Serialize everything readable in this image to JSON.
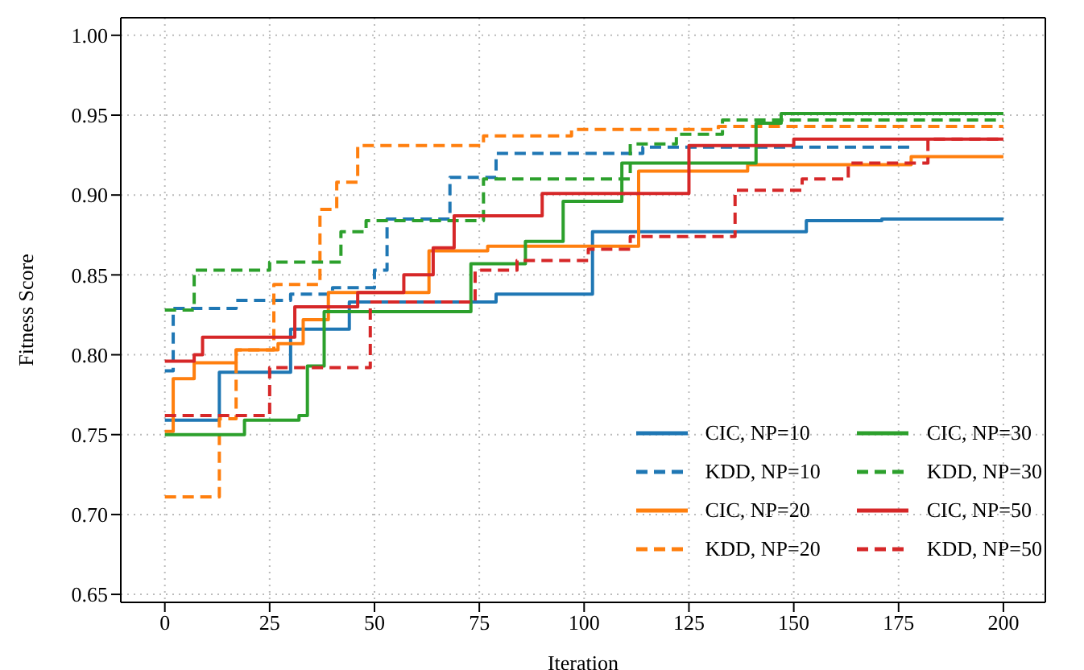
{
  "chart_data": {
    "type": "step",
    "xlabel": "Iteration",
    "ylabel": "Fitness Score",
    "xlim": [
      -10.5,
      210
    ],
    "ylim": [
      0.645,
      1.011
    ],
    "xticks": [
      0,
      25,
      50,
      75,
      100,
      125,
      150,
      175,
      200
    ],
    "yticks": [
      {
        "value": 0.65,
        "label": "0.65"
      },
      {
        "value": 0.7,
        "label": "0.70"
      },
      {
        "value": 0.75,
        "label": "0.75"
      },
      {
        "value": 0.8,
        "label": "0.80"
      },
      {
        "value": 0.85,
        "label": "0.85"
      },
      {
        "value": 0.9,
        "label": "0.90"
      },
      {
        "value": 0.95,
        "label": "0.95"
      },
      {
        "value": 1.0,
        "label": "1.00"
      }
    ],
    "grid": true,
    "legend": "bottom right",
    "series": [
      {
        "name": "CIC, NP=10",
        "color": "#1f77b4",
        "line_style": "solid",
        "x": [
          0,
          13,
          30,
          44,
          79,
          102,
          153,
          171,
          200
        ],
        "values": [
          0.759,
          0.789,
          0.816,
          0.833,
          0.838,
          0.877,
          0.884,
          0.885,
          0.885
        ]
      },
      {
        "name": "KDD, NP=10",
        "color": "#1f77b4",
        "line_style": "dashed",
        "x": [
          0,
          2,
          17,
          30,
          40,
          50,
          53,
          68,
          79,
          114,
          178
        ],
        "values": [
          0.79,
          0.829,
          0.834,
          0.838,
          0.842,
          0.853,
          0.885,
          0.911,
          0.926,
          0.93,
          0.93
        ]
      },
      {
        "name": "CIC, NP=20",
        "color": "#ff7f0e",
        "line_style": "solid",
        "x": [
          0,
          2,
          7,
          17,
          27,
          33,
          39,
          63,
          77,
          113,
          139,
          178,
          200
        ],
        "values": [
          0.752,
          0.785,
          0.795,
          0.803,
          0.807,
          0.822,
          0.839,
          0.865,
          0.868,
          0.915,
          0.919,
          0.924,
          0.924
        ]
      },
      {
        "name": "KDD, NP=20",
        "color": "#ff7f0e",
        "line_style": "dashed",
        "x": [
          0,
          13,
          17,
          26,
          37,
          41,
          46,
          76,
          97,
          132,
          200
        ],
        "values": [
          0.711,
          0.76,
          0.803,
          0.844,
          0.891,
          0.908,
          0.931,
          0.937,
          0.941,
          0.943,
          0.943
        ]
      },
      {
        "name": "CIC, NP=30",
        "color": "#2ca02c",
        "line_style": "solid",
        "x": [
          0,
          19,
          32,
          34,
          38,
          73,
          86,
          95,
          109,
          141,
          147,
          200
        ],
        "values": [
          0.75,
          0.759,
          0.762,
          0.793,
          0.827,
          0.857,
          0.871,
          0.896,
          0.92,
          0.945,
          0.951,
          0.951
        ]
      },
      {
        "name": "KDD, NP=30",
        "color": "#2ca02c",
        "line_style": "dashed",
        "x": [
          0,
          7,
          25,
          42,
          48,
          76,
          111,
          122,
          133,
          200
        ],
        "values": [
          0.828,
          0.853,
          0.858,
          0.877,
          0.884,
          0.91,
          0.932,
          0.938,
          0.947,
          0.947
        ]
      },
      {
        "name": "CIC, NP=50",
        "color": "#d62728",
        "line_style": "solid",
        "x": [
          0,
          7,
          9,
          31,
          46,
          57,
          64,
          69,
          90,
          125,
          150,
          200
        ],
        "values": [
          0.796,
          0.8,
          0.811,
          0.83,
          0.839,
          0.85,
          0.867,
          0.887,
          0.901,
          0.931,
          0.935,
          0.935
        ]
      },
      {
        "name": "KDD, NP=50",
        "color": "#d62728",
        "line_style": "dashed",
        "x": [
          0,
          25,
          49,
          74,
          84,
          101,
          111,
          136,
          152,
          163,
          182,
          200
        ],
        "values": [
          0.762,
          0.792,
          0.833,
          0.853,
          0.859,
          0.866,
          0.874,
          0.903,
          0.91,
          0.92,
          0.935,
          0.935
        ]
      }
    ]
  }
}
